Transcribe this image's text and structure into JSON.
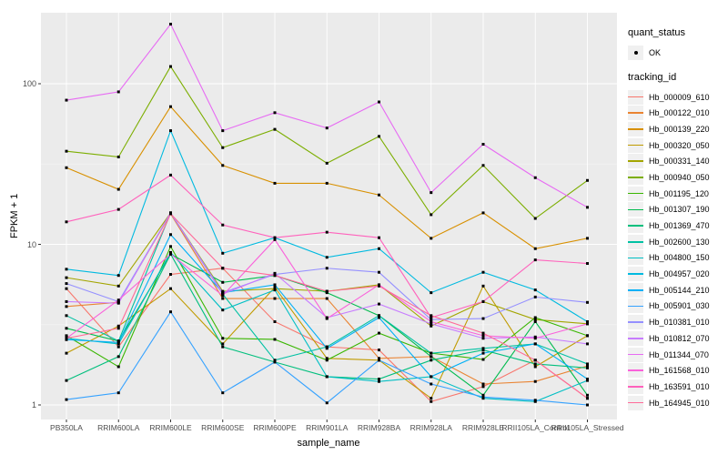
{
  "figure": {
    "background": "#FFFFFF",
    "panel_background": "#EBEBEB",
    "grid_major_color": "#FFFFFF",
    "grid_minor_color": "#F4F4F4",
    "tick_mark_color": "#333333",
    "tick_label_color": "#4D4D4D",
    "point_color": "#000000"
  },
  "chart_data": {
    "type": "line",
    "title": "",
    "xlabel": "sample_name",
    "ylabel": "FPKM + 1",
    "y_scale": "log10",
    "y_tick_labels": [
      "1",
      "10",
      "100"
    ],
    "y_tick_values": [
      1,
      10,
      100
    ],
    "y_minor_values": [
      3.162,
      31.62
    ],
    "ylim": [
      0.82,
      290
    ],
    "grid": true,
    "legend_position": "right",
    "categories": [
      "PB350LA",
      "RRIM600LA",
      "RRIM600LE",
      "RRIM600SE",
      "RRIM600PE",
      "RRIM901LA",
      "RRIM928BA",
      "RRIM928LA",
      "RRIM928LE",
      "RRII105LA_Control",
      "RRII105LA_Stressed"
    ],
    "legend": {
      "quant_status_title": "quant_status",
      "quant_status_items": [
        "OK"
      ],
      "tracking_id_title": "tracking_id"
    },
    "series": [
      {
        "tracking_id": "Hb_000009_610",
        "color": "#F8766D",
        "values": [
          5.3,
          2.3,
          6.5,
          7.1,
          3.3,
          2.3,
          2.2,
          1.05,
          1.3,
          1.9,
          1.1
        ]
      },
      {
        "tracking_id": "Hb_000122_010",
        "color": "#EA8331",
        "values": [
          4.1,
          4.35,
          15.5,
          4.6,
          4.6,
          4.6,
          1.95,
          2.0,
          1.35,
          1.4,
          1.75
        ]
      },
      {
        "tracking_id": "Hb_000139_220",
        "color": "#D89000",
        "values": [
          30,
          22,
          72,
          31,
          24,
          24,
          20.3,
          10.9,
          15.7,
          9.4,
          10.9
        ]
      },
      {
        "tracking_id": "Hb_000320_050",
        "color": "#C09B00",
        "values": [
          2.1,
          3.1,
          5.3,
          2.4,
          5.4,
          1.95,
          1.9,
          1.1,
          5.5,
          1.73,
          2.7
        ]
      },
      {
        "tracking_id": "Hb_000331_140",
        "color": "#A3A500",
        "values": [
          6.2,
          5.5,
          15.7,
          5.1,
          5.3,
          5.1,
          5.6,
          3.1,
          4.4,
          3.4,
          3.2
        ]
      },
      {
        "tracking_id": "Hb_000940_050",
        "color": "#7CAE00",
        "values": [
          38,
          35,
          128,
          40,
          52,
          32,
          47,
          15.3,
          31,
          14.5,
          25
        ]
      },
      {
        "tracking_id": "Hb_001195_120",
        "color": "#39B600",
        "values": [
          2.7,
          1.73,
          9.7,
          2.6,
          2.56,
          1.9,
          2.8,
          2.1,
          1.92,
          3.5,
          2.7
        ]
      },
      {
        "tracking_id": "Hb_001307_190",
        "color": "#00BB4E",
        "values": [
          3.0,
          2.5,
          8.7,
          5.8,
          6.4,
          5.0,
          3.6,
          2.0,
          1.15,
          3.3,
          1.15
        ]
      },
      {
        "tracking_id": "Hb_001369_470",
        "color": "#00BF7D",
        "values": [
          1.42,
          2.0,
          8.7,
          2.3,
          1.85,
          1.5,
          1.45,
          1.9,
          2.2,
          1.8,
          1.7
        ]
      },
      {
        "tracking_id": "Hb_002600_130",
        "color": "#00C1A3",
        "values": [
          3.6,
          2.5,
          15.7,
          4.9,
          1.9,
          2.3,
          3.6,
          2.1,
          2.25,
          2.4,
          1.8
        ]
      },
      {
        "tracking_id": "Hb_004800_150",
        "color": "#00BFC4",
        "values": [
          2.6,
          2.4,
          8.9,
          3.9,
          5.2,
          1.5,
          1.4,
          1.5,
          1.1,
          1.05,
          1.42
        ]
      },
      {
        "tracking_id": "Hb_004957_020",
        "color": "#00BAE0",
        "values": [
          7.0,
          6.4,
          51,
          8.8,
          11,
          8.3,
          9.4,
          5.0,
          6.7,
          5.2,
          3.3
        ]
      },
      {
        "tracking_id": "Hb_005144_210",
        "color": "#00B0F6",
        "values": [
          2.55,
          2.45,
          11.5,
          5.0,
          5.6,
          2.25,
          3.5,
          1.5,
          2.1,
          2.4,
          1.45
        ]
      },
      {
        "tracking_id": "Hb_005901_030",
        "color": "#35A2FF",
        "values": [
          1.08,
          1.19,
          3.8,
          1.19,
          1.85,
          1.03,
          1.9,
          1.35,
          1.12,
          1.07,
          1.0
        ]
      },
      {
        "tracking_id": "Hb_010381_010",
        "color": "#9590FF",
        "values": [
          5.7,
          4.4,
          15.7,
          5.0,
          6.5,
          7.1,
          6.7,
          3.4,
          3.45,
          4.7,
          4.35
        ]
      },
      {
        "tracking_id": "Hb_010812_070",
        "color": "#C77CFF",
        "values": [
          4.4,
          4.3,
          15.7,
          4.9,
          6.6,
          3.5,
          4.25,
          3.2,
          2.6,
          2.65,
          2.4
        ]
      },
      {
        "tracking_id": "Hb_011344_070",
        "color": "#E76BF3",
        "values": [
          79,
          89,
          235,
          51,
          66,
          53,
          77,
          21,
          42,
          26,
          17
        ]
      },
      {
        "tracking_id": "Hb_161568_010",
        "color": "#FA62DB",
        "values": [
          2.6,
          4.5,
          8.7,
          4.8,
          10.7,
          3.45,
          5.6,
          3.3,
          2.7,
          2.6,
          3.2
        ]
      },
      {
        "tracking_id": "Hb_163591_010",
        "color": "#FF62BC",
        "values": [
          13.8,
          16.5,
          27,
          13.2,
          11,
          11.9,
          11,
          3.5,
          4.4,
          8.0,
          7.6
        ]
      },
      {
        "tracking_id": "Hb_164945_010",
        "color": "#FF6A98",
        "values": [
          2.6,
          3.0,
          15.5,
          7.1,
          6.4,
          5.1,
          5.5,
          3.6,
          2.8,
          1.9,
          1.1
        ]
      }
    ]
  }
}
